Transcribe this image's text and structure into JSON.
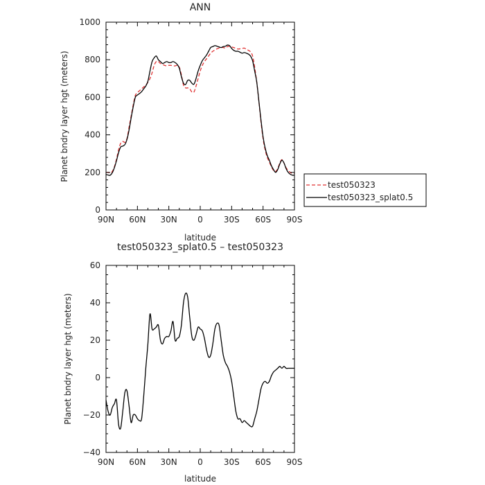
{
  "chart_data": [
    {
      "type": "line",
      "title": "ANN",
      "xlabel": "latitude",
      "ylabel": "Planet bndry layer hgt (meters)",
      "xlim": [
        90,
        -90
      ],
      "ylim": [
        0,
        1000
      ],
      "x_ticks": [
        90,
        60,
        30,
        0,
        -30,
        -60,
        -90
      ],
      "x_tick_labels": [
        "90N",
        "60N",
        "30N",
        "0",
        "30S",
        "60S",
        "90S"
      ],
      "y_ticks": [
        0,
        200,
        400,
        600,
        800,
        1000
      ],
      "y_tick_labels": [
        "0",
        "200",
        "400",
        "600",
        "800",
        "1000"
      ],
      "legend_position": "right",
      "series": [
        {
          "name": "test050323",
          "color": "#e03030",
          "dash": "dashed",
          "x": [
            90,
            88,
            86,
            84,
            82,
            80,
            78,
            76,
            74,
            72,
            70,
            68,
            66,
            64,
            62,
            60,
            58,
            56,
            54,
            52,
            50,
            48,
            46,
            44,
            42,
            40,
            38,
            36,
            34,
            32,
            30,
            28,
            26,
            24,
            22,
            20,
            18,
            16,
            14,
            12,
            10,
            8,
            6,
            4,
            2,
            0,
            -2,
            -4,
            -6,
            -8,
            -10,
            -12,
            -14,
            -16,
            -18,
            -20,
            -22,
            -24,
            -26,
            -28,
            -30,
            -32,
            -34,
            -36,
            -38,
            -40,
            -42,
            -44,
            -46,
            -48,
            -50,
            -52,
            -54,
            -56,
            -58,
            -60,
            -62,
            -64,
            -66,
            -68,
            -70,
            -72,
            -74,
            -76,
            -78,
            -80,
            -82,
            -84,
            -86,
            -88,
            -90
          ],
          "values": [
            200,
            200,
            198,
            205,
            230,
            270,
            320,
            355,
            365,
            360,
            380,
            440,
            500,
            560,
            610,
            625,
            635,
            645,
            655,
            665,
            680,
            700,
            730,
            770,
            790,
            790,
            780,
            775,
            770,
            768,
            770,
            770,
            768,
            767,
            770,
            760,
            720,
            665,
            650,
            650,
            645,
            628,
            628,
            660,
            700,
            740,
            770,
            790,
            805,
            820,
            835,
            845,
            852,
            858,
            862,
            865,
            865,
            862,
            870,
            872,
            868,
            865,
            860,
            857,
            858,
            860,
            862,
            856,
            850,
            842,
            820,
            760,
            680,
            580,
            470,
            380,
            320,
            280,
            255,
            230,
            210,
            205,
            220,
            250,
            268,
            250,
            225,
            210,
            200,
            195,
            195
          ]
        },
        {
          "name": "test050323_splat0.5",
          "color": "#000000",
          "dash": "solid",
          "x": [
            90,
            88,
            86,
            84,
            82,
            80,
            78,
            76,
            74,
            72,
            70,
            68,
            66,
            64,
            62,
            60,
            58,
            56,
            54,
            52,
            50,
            48,
            46,
            44,
            42,
            40,
            38,
            36,
            34,
            32,
            30,
            28,
            26,
            24,
            22,
            20,
            18,
            16,
            14,
            12,
            10,
            8,
            6,
            4,
            2,
            0,
            -2,
            -4,
            -6,
            -8,
            -10,
            -12,
            -14,
            -16,
            -18,
            -20,
            -22,
            -24,
            -26,
            -28,
            -30,
            -32,
            -34,
            -36,
            -38,
            -40,
            -42,
            -44,
            -46,
            -48,
            -50,
            -52,
            -54,
            -56,
            -58,
            -60,
            -62,
            -64,
            -66,
            -68,
            -70,
            -72,
            -74,
            -76,
            -78,
            -80,
            -82,
            -84,
            -86,
            -88,
            -90
          ],
          "values": [
            188,
            186,
            185,
            198,
            225,
            262,
            305,
            335,
            340,
            348,
            375,
            425,
            490,
            550,
            600,
            612,
            620,
            630,
            645,
            660,
            685,
            740,
            790,
            810,
            820,
            800,
            790,
            780,
            785,
            790,
            785,
            785,
            790,
            785,
            775,
            755,
            710,
            675,
            668,
            690,
            690,
            675,
            670,
            700,
            740,
            770,
            795,
            810,
            825,
            845,
            865,
            870,
            875,
            872,
            868,
            865,
            870,
            872,
            878,
            875,
            860,
            850,
            845,
            845,
            840,
            835,
            838,
            835,
            830,
            820,
            795,
            740,
            680,
            580,
            480,
            390,
            330,
            290,
            265,
            235,
            215,
            200,
            215,
            245,
            265,
            250,
            220,
            200,
            190,
            185,
            185
          ]
        }
      ]
    },
    {
      "type": "line",
      "title": "test050323_splat0.5 – test050323",
      "xlabel": "latitude",
      "ylabel": "Planet bndry layer hgt (meters)",
      "xlim": [
        90,
        -90
      ],
      "ylim": [
        -40,
        60
      ],
      "x_ticks": [
        90,
        60,
        30,
        0,
        -30,
        -60,
        -90
      ],
      "x_tick_labels": [
        "90N",
        "60N",
        "30N",
        "0",
        "30S",
        "60S",
        "90S"
      ],
      "y_ticks": [
        -40,
        -20,
        0,
        20,
        40,
        60
      ],
      "y_tick_labels": [
        "−40",
        "−20",
        "0",
        "20",
        "40",
        "60"
      ],
      "series": [
        {
          "name": "",
          "color": "#000000",
          "dash": "solid",
          "x": [
            90,
            88,
            86,
            84,
            82,
            80,
            78,
            76,
            74,
            72,
            70,
            68,
            66,
            64,
            62,
            60,
            58,
            56,
            54,
            52,
            50,
            48,
            46,
            44,
            42,
            40,
            38,
            36,
            34,
            32,
            30,
            28,
            26,
            24,
            22,
            20,
            18,
            16,
            14,
            12,
            10,
            8,
            6,
            4,
            2,
            0,
            -2,
            -4,
            -6,
            -8,
            -10,
            -12,
            -14,
            -16,
            -18,
            -20,
            -22,
            -24,
            -26,
            -28,
            -30,
            -32,
            -34,
            -36,
            -38,
            -40,
            -42,
            -44,
            -46,
            -48,
            -50,
            -52,
            -54,
            -56,
            -58,
            -60,
            -62,
            -64,
            -66,
            -68,
            -70,
            -72,
            -74,
            -76,
            -78,
            -80,
            -82,
            -84,
            -86,
            -88,
            -90
          ],
          "values": [
            -12,
            -18,
            -20,
            -16,
            -14,
            -12,
            -25,
            -27,
            -18,
            -8,
            -7,
            -15,
            -24,
            -20,
            -20,
            -22,
            -23,
            -22,
            -10,
            5,
            18,
            34,
            26,
            26,
            27,
            28,
            20,
            18,
            21,
            22,
            22,
            25,
            30,
            20,
            21,
            22,
            28,
            40,
            45,
            43,
            32,
            22,
            20,
            23,
            27,
            26,
            25,
            21,
            15,
            11,
            12,
            18,
            26,
            29,
            28,
            20,
            12,
            8,
            6,
            3,
            -2,
            -10,
            -18,
            -22,
            -22,
            -24,
            -23,
            -24,
            -25,
            -26,
            -26,
            -22,
            -18,
            -12,
            -6,
            -3,
            -2,
            -3,
            -2,
            1,
            3,
            4,
            5,
            6,
            5,
            6,
            5,
            5,
            5,
            5,
            5
          ]
        }
      ]
    }
  ]
}
